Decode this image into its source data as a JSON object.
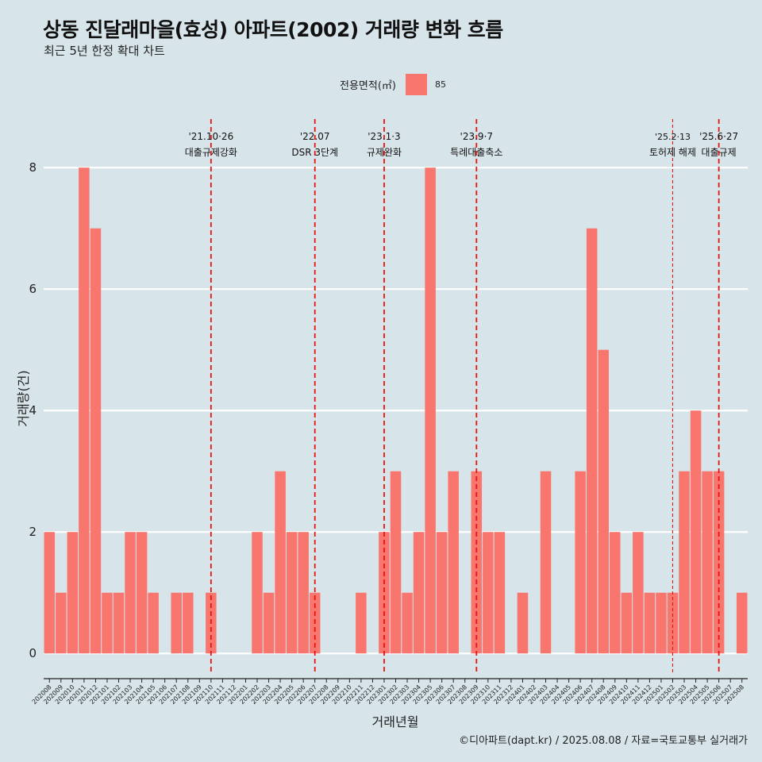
{
  "title": "상동 진달래마을(효성) 아파트(2002) 거래량 변화 흐름",
  "subtitle": "최근 5년 한정 확대 차트",
  "caption": "©디아파트(dapt.kr) / 2025.08.08 / 자료=국토교통부 실거래가",
  "colors": {
    "bar": "#f8766d",
    "background": "#d7e4ea",
    "grid": "#ffffff",
    "event_line": "#e8150f"
  },
  "chart_data": {
    "type": "bar",
    "title": "상동 진달래마을(효성) 아파트(2002) 거래량 변화 흐름",
    "subtitle": "최근 5년 한정 확대 차트",
    "xlabel": "거래년월",
    "ylabel": "거래량(건)",
    "legend": {
      "title": "전용면적(㎡)",
      "entries": [
        "85"
      ],
      "position": "top"
    },
    "ylim": [
      -0.35,
      8.8
    ],
    "yticks": [
      0,
      2,
      4,
      6,
      8
    ],
    "grid": true,
    "categories": [
      "202008",
      "202009",
      "202010",
      "202011",
      "202012",
      "202101",
      "202102",
      "202103",
      "202104",
      "202105",
      "202106",
      "202107",
      "202108",
      "202109",
      "202110",
      "202111",
      "202112",
      "202201",
      "202202",
      "202203",
      "202204",
      "202205",
      "202206",
      "202207",
      "202208",
      "202209",
      "202210",
      "202211",
      "202212",
      "202301",
      "202302",
      "202303",
      "202304",
      "202305",
      "202306",
      "202307",
      "202308",
      "202309",
      "202310",
      "202311",
      "202312",
      "202401",
      "202402",
      "202403",
      "202404",
      "202405",
      "202406",
      "202407",
      "202408",
      "202409",
      "202410",
      "202411",
      "202412",
      "202501",
      "202502",
      "202503",
      "202504",
      "202505",
      "202506",
      "202507",
      "202508"
    ],
    "series": [
      {
        "name": "85",
        "values": [
          2,
          1,
          2,
          8,
          7,
          1,
          1,
          2,
          2,
          1,
          0,
          1,
          1,
          0,
          1,
          0,
          0,
          0,
          2,
          1,
          3,
          2,
          2,
          1,
          0,
          0,
          0,
          1,
          0,
          2,
          3,
          1,
          2,
          8,
          2,
          3,
          0,
          3,
          2,
          2,
          0,
          1,
          0,
          3,
          0,
          0,
          3,
          7,
          5,
          2,
          1,
          2,
          1,
          1,
          1,
          3,
          4,
          3,
          3,
          0,
          1
        ]
      }
    ],
    "events": [
      {
        "at": "202110",
        "date": "'21.10·26",
        "label": "대출규제강화",
        "style": "dashed"
      },
      {
        "at": "202207",
        "date": "'22.07",
        "label": "DSR 3단계",
        "style": "dashed"
      },
      {
        "at": "202301",
        "date": "'23.1·3",
        "label": "규제완화",
        "style": "dashed"
      },
      {
        "at": "202309",
        "date": "'23.9·7",
        "label": "특례대출축소",
        "style": "dashed"
      },
      {
        "at": "202502",
        "date": "'25.2·13",
        "label": "토허제 해제",
        "style": "dashed-thin"
      },
      {
        "at": "202506",
        "date": "'25.6·27",
        "label": "대출규제",
        "style": "dashed"
      }
    ]
  }
}
